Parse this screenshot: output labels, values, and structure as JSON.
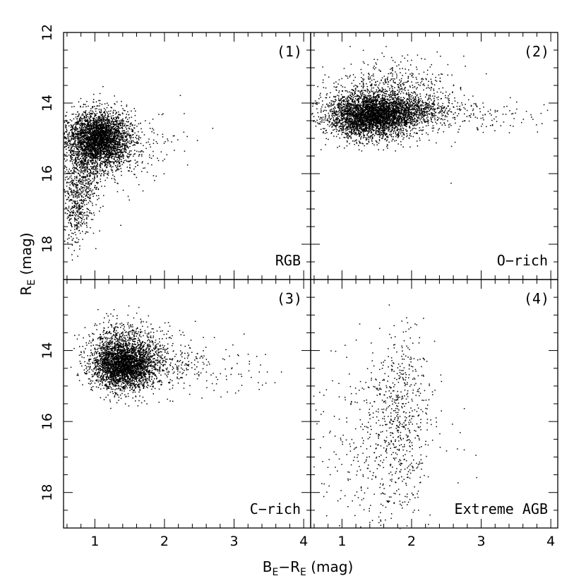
{
  "figure": {
    "xlabel": "B_E−R_E (mag)",
    "xlabel_parts": {
      "b": "B",
      "sub1": "E",
      "minus": "−R",
      "sub2": "E",
      "rest": " (mag)"
    },
    "ylabel_parts": {
      "r": "R",
      "sub": "E",
      "rest": " (mag)"
    }
  },
  "chart_data": [
    {
      "type": "scatter",
      "panel": "(1)",
      "label": "RGB",
      "xlabel": "B_E−R_E (mag)",
      "ylabel": "R_E (mag)",
      "xlim": [
        0.55,
        4.1
      ],
      "ylim": [
        19.0,
        12.0
      ],
      "y_inverted": true,
      "xticks": [],
      "yticks": [
        12,
        14,
        16,
        18
      ],
      "clusters": [
        {
          "cx": 1.05,
          "cy": 15.0,
          "sx": 0.22,
          "sy": 0.38,
          "n": 3200
        },
        {
          "cx": 0.8,
          "cy": 16.2,
          "sx": 0.13,
          "sy": 0.7,
          "n": 600
        },
        {
          "cx": 1.2,
          "cy": 15.3,
          "sx": 0.45,
          "sy": 0.6,
          "n": 350
        },
        {
          "cx": 0.7,
          "cy": 17.2,
          "sx": 0.07,
          "sy": 0.5,
          "n": 180
        }
      ]
    },
    {
      "type": "scatter",
      "panel": "(2)",
      "label": "O−rich",
      "xlim": [
        0.55,
        4.1
      ],
      "ylim": [
        19.0,
        12.0
      ],
      "y_inverted": true,
      "xticks": [],
      "yticks": [],
      "clusters": [
        {
          "cx": 1.4,
          "cy": 14.35,
          "sx": 0.3,
          "sy": 0.3,
          "n": 3200
        },
        {
          "cx": 1.7,
          "cy": 13.9,
          "sx": 0.45,
          "sy": 0.55,
          "n": 900
        },
        {
          "cx": 2.6,
          "cy": 14.3,
          "sx": 0.6,
          "sy": 0.25,
          "n": 180
        },
        {
          "cx": 1.9,
          "cy": 14.2,
          "sx": 0.3,
          "sy": 0.2,
          "n": 600
        }
      ]
    },
    {
      "type": "scatter",
      "panel": "(3)",
      "label": "C−rich",
      "xlim": [
        0.55,
        4.1
      ],
      "ylim": [
        19.0,
        12.0
      ],
      "y_inverted": true,
      "xticks": [
        1,
        2,
        3,
        4
      ],
      "yticks": [
        14,
        16,
        18
      ],
      "clusters": [
        {
          "cx": 1.4,
          "cy": 14.4,
          "sx": 0.22,
          "sy": 0.32,
          "n": 2600
        },
        {
          "cx": 1.6,
          "cy": 14.2,
          "sx": 0.35,
          "sy": 0.5,
          "n": 700
        },
        {
          "cx": 2.4,
          "cy": 14.5,
          "sx": 0.5,
          "sy": 0.35,
          "n": 170
        },
        {
          "cx": 1.3,
          "cy": 13.8,
          "sx": 0.2,
          "sy": 0.35,
          "n": 300
        }
      ]
    },
    {
      "type": "scatter",
      "panel": "(4)",
      "label": "Extreme AGB",
      "xlim": [
        0.55,
        4.1
      ],
      "ylim": [
        19.0,
        12.0
      ],
      "y_inverted": true,
      "xticks": [
        1,
        2,
        3,
        4
      ],
      "yticks": [],
      "clusters": [
        {
          "cx": 1.85,
          "cy": 15.9,
          "sx": 0.2,
          "sy": 1.25,
          "n": 520
        },
        {
          "cx": 1.35,
          "cy": 16.5,
          "sx": 0.35,
          "sy": 1.35,
          "n": 300
        },
        {
          "cx": 2.5,
          "cy": 16.8,
          "sx": 0.6,
          "sy": 1.2,
          "n": 20
        }
      ]
    }
  ]
}
